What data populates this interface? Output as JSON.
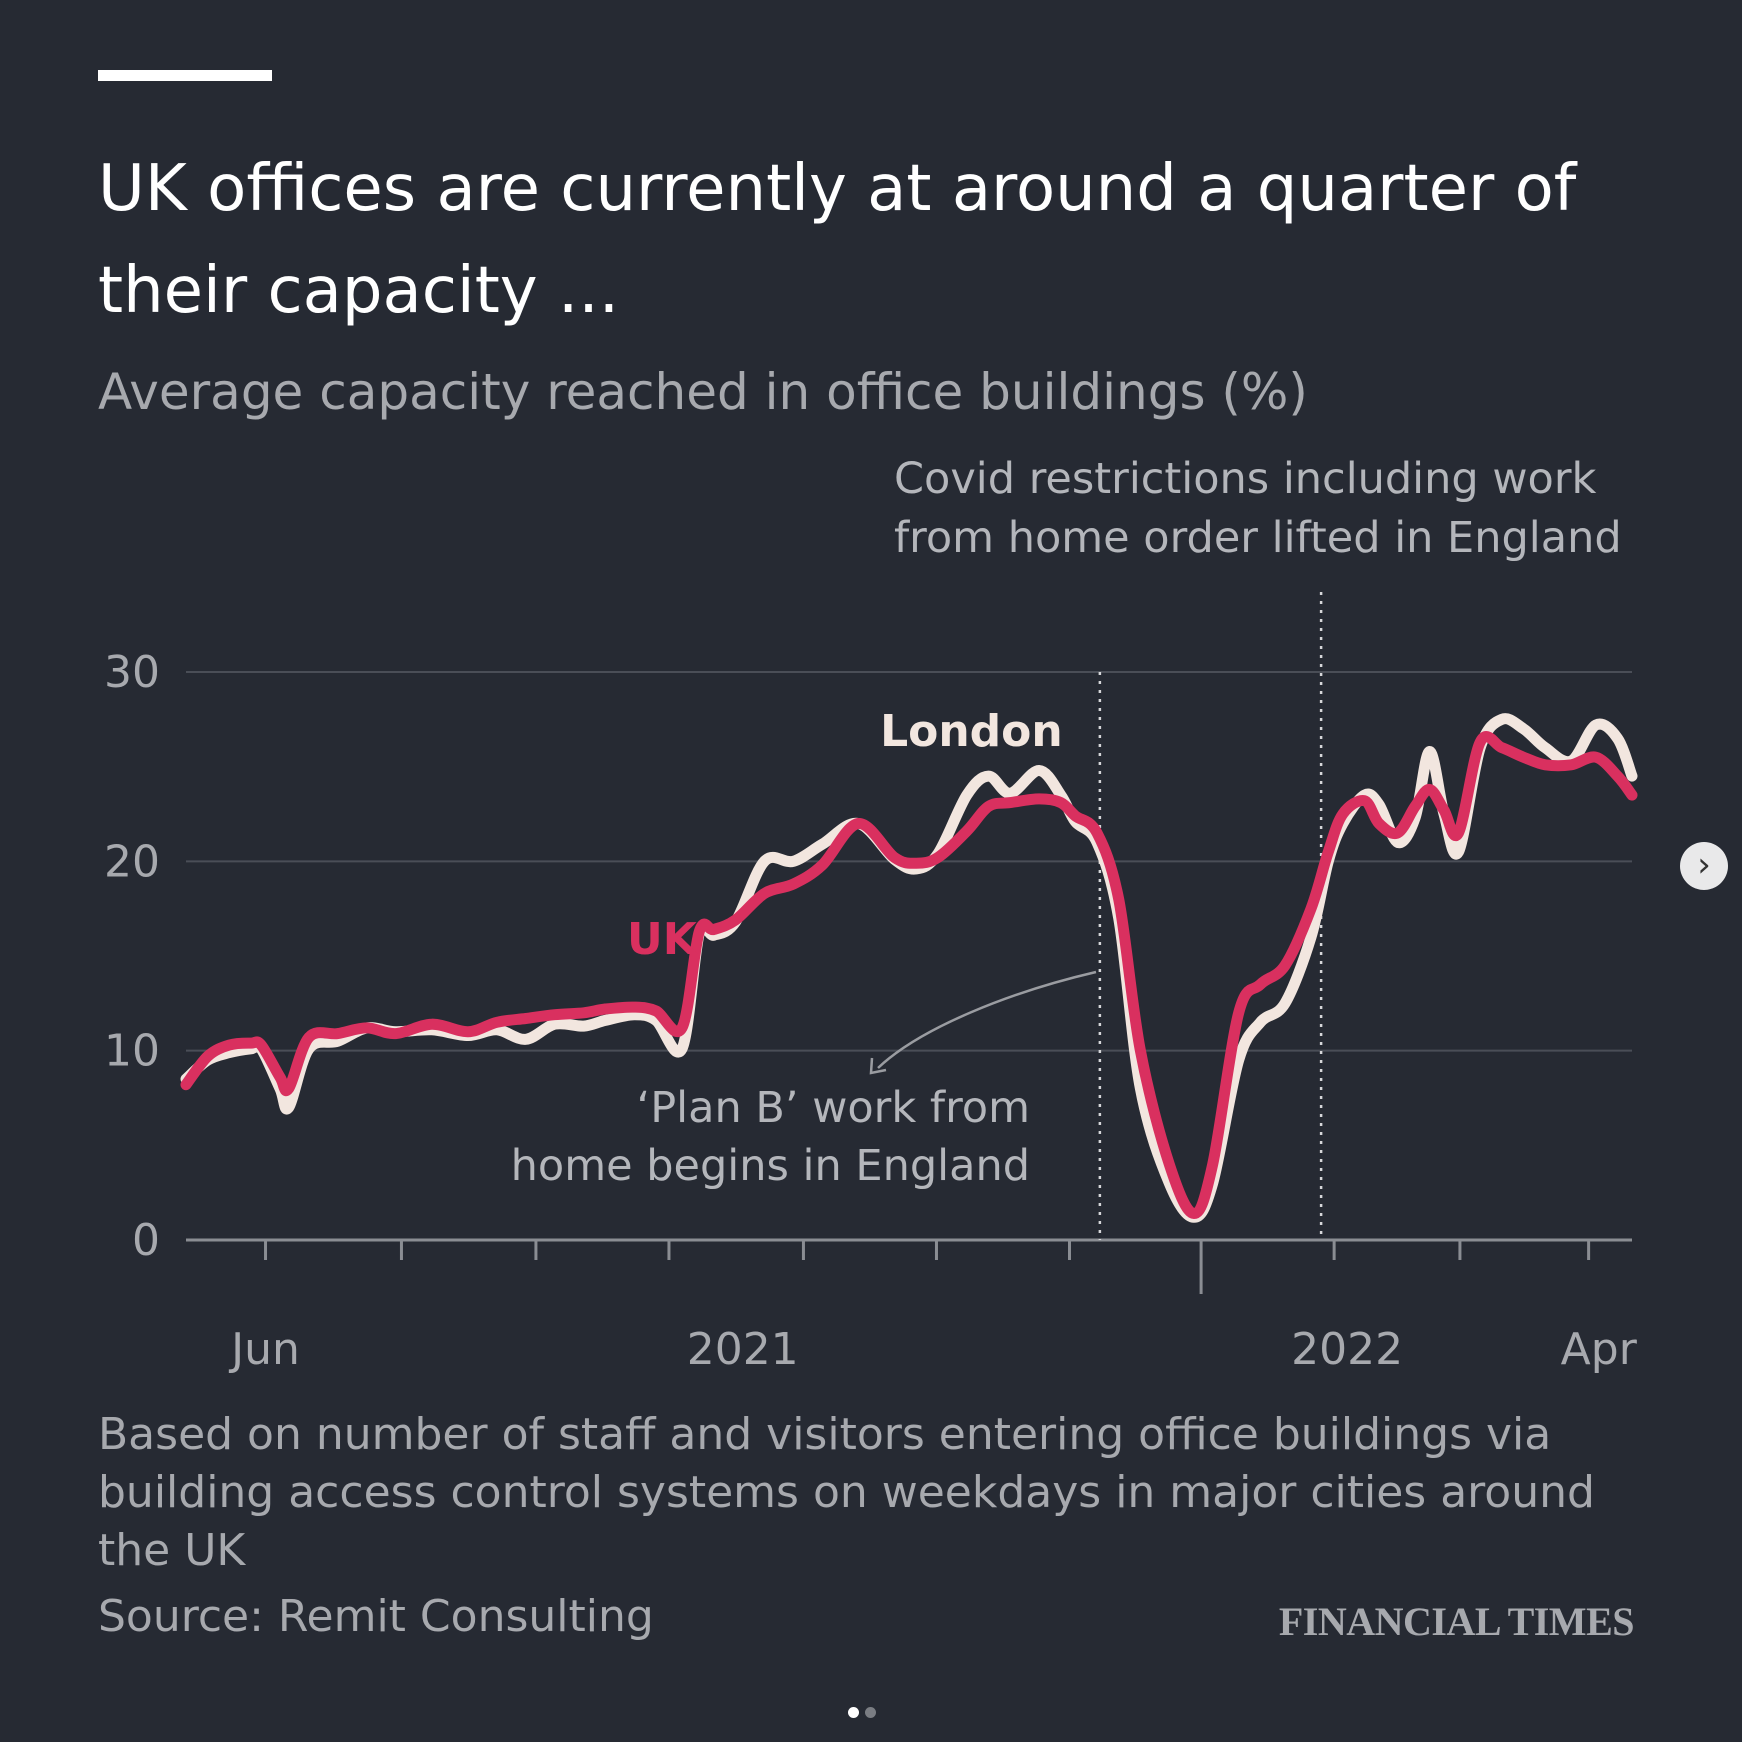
{
  "header": {
    "title": "UK offices are currently at around a quarter of their capacity ...",
    "subtitle": "Average capacity reached in office buildings (%)"
  },
  "annotations": {
    "covid_lifted_line1": "Covid restrictions including work",
    "covid_lifted_line2": "from home order lifted in England",
    "plan_b_line1": "‘Plan B’ work from",
    "plan_b_line2": "home begins in England"
  },
  "footer": {
    "note": "Based on number of staff and visitors entering office buildings via building access control systems on weekdays in major cities around the UK",
    "source": "Source: Remit Consulting",
    "brand": "FINANCIAL TIMES"
  },
  "colors": {
    "background": "#262a33",
    "uk": "#d9305f",
    "london": "#f2e6df",
    "grid": "#4a4e57"
  },
  "carousel": {
    "next_icon": "chevron-right-icon",
    "pages": 2,
    "current": 1
  },
  "chart_data": {
    "type": "line",
    "title": "UK offices are currently at around a quarter of their capacity ...",
    "ylabel": "Average capacity reached in office buildings (%)",
    "xlabel": "",
    "ylim": [
      0,
      30
    ],
    "xlim": [
      0,
      100
    ],
    "yticks": [
      0,
      10,
      20,
      30
    ],
    "xtick_labels": [
      {
        "x": 5.5,
        "label": "Jun"
      },
      {
        "x": 38.5,
        "label": "2021"
      },
      {
        "x": 80.3,
        "label": "2022"
      },
      {
        "x": 97.7,
        "label": "Apr"
      }
    ],
    "minor_ticks": [
      5.5,
      14.9,
      24.2,
      33.4,
      42.7,
      51.9,
      61.1,
      70.2,
      79.4,
      88.1,
      97.0
    ],
    "major_tick": 70.2,
    "grid": true,
    "events": [
      {
        "x": 63.2,
        "label": "‘Plan B’ work from home begins in England"
      },
      {
        "x": 78.5,
        "label": "Covid restrictions including work from home order lifted in England"
      }
    ],
    "series": [
      {
        "name": "London",
        "color": "#f2e6df",
        "points": [
          [
            0,
            8.5
          ],
          [
            1.5,
            9.5
          ],
          [
            3,
            9.9
          ],
          [
            4.5,
            10.1
          ],
          [
            5.2,
            10.1
          ],
          [
            6.5,
            8.0
          ],
          [
            7.1,
            7.0
          ],
          [
            8.5,
            10.1
          ],
          [
            10.5,
            10.5
          ],
          [
            12.5,
            11.2
          ],
          [
            14.5,
            11.0
          ],
          [
            17,
            11.1
          ],
          [
            19.5,
            10.8
          ],
          [
            21.5,
            11.1
          ],
          [
            23.5,
            10.6
          ],
          [
            25.5,
            11.4
          ],
          [
            27.5,
            11.3
          ],
          [
            29,
            11.6
          ],
          [
            31,
            11.9
          ],
          [
            32.5,
            11.6
          ],
          [
            34.3,
            10.1
          ],
          [
            35.5,
            16.2
          ],
          [
            36.5,
            16.1
          ],
          [
            38,
            16.8
          ],
          [
            40,
            20.0
          ],
          [
            42,
            20.0
          ],
          [
            44,
            20.9
          ],
          [
            46.5,
            22.0
          ],
          [
            49,
            20.1
          ],
          [
            50.5,
            19.6
          ],
          [
            52,
            20.4
          ],
          [
            54,
            23.5
          ],
          [
            55.5,
            24.5
          ],
          [
            57,
            23.6
          ],
          [
            59,
            24.8
          ],
          [
            60.5,
            23.5
          ],
          [
            61.5,
            22.1
          ],
          [
            63,
            21.0
          ],
          [
            64.5,
            17.0
          ],
          [
            66,
            8.0
          ],
          [
            68,
            3.0
          ],
          [
            69.7,
            1.2
          ],
          [
            71,
            3.0
          ],
          [
            72.8,
            9.5
          ],
          [
            74.3,
            11.5
          ],
          [
            76,
            12.5
          ],
          [
            77.8,
            16.0
          ],
          [
            79,
            20.0
          ],
          [
            80,
            22.0
          ],
          [
            81.5,
            23.5
          ],
          [
            82.5,
            23.0
          ],
          [
            83.8,
            21.0
          ],
          [
            85,
            22.3
          ],
          [
            86,
            25.8
          ],
          [
            87,
            22.5
          ],
          [
            88,
            20.5
          ],
          [
            89.5,
            26.0
          ],
          [
            91,
            27.5
          ],
          [
            92.5,
            27.0
          ],
          [
            94,
            26.0
          ],
          [
            95.8,
            25.3
          ],
          [
            97.5,
            27.2
          ],
          [
            99,
            26.5
          ],
          [
            100,
            24.5
          ]
        ]
      },
      {
        "name": "UK",
        "color": "#d9305f",
        "points": [
          [
            0,
            8.2
          ],
          [
            1.5,
            9.7
          ],
          [
            3,
            10.3
          ],
          [
            4.5,
            10.4
          ],
          [
            5.2,
            10.3
          ],
          [
            6.5,
            8.6
          ],
          [
            7.1,
            8.0
          ],
          [
            8.5,
            10.7
          ],
          [
            10.5,
            10.9
          ],
          [
            12.5,
            11.2
          ],
          [
            14.5,
            10.9
          ],
          [
            17,
            11.4
          ],
          [
            19.5,
            11.0
          ],
          [
            21.5,
            11.5
          ],
          [
            23.5,
            11.7
          ],
          [
            25.5,
            11.9
          ],
          [
            27.5,
            12.0
          ],
          [
            29,
            12.2
          ],
          [
            31,
            12.3
          ],
          [
            32.5,
            12.1
          ],
          [
            34.3,
            11.2
          ],
          [
            35.5,
            16.3
          ],
          [
            36.5,
            16.4
          ],
          [
            38,
            16.9
          ],
          [
            40,
            18.3
          ],
          [
            42,
            18.8
          ],
          [
            44,
            19.8
          ],
          [
            46.5,
            22.0
          ],
          [
            49,
            20.2
          ],
          [
            50.5,
            19.9
          ],
          [
            52,
            20.2
          ],
          [
            54,
            21.6
          ],
          [
            55.5,
            22.9
          ],
          [
            57,
            23.1
          ],
          [
            59,
            23.3
          ],
          [
            60.5,
            23.1
          ],
          [
            61.5,
            22.4
          ],
          [
            63,
            21.5
          ],
          [
            64.5,
            18.0
          ],
          [
            66,
            10.0
          ],
          [
            68,
            4.0
          ],
          [
            69.7,
            1.4
          ],
          [
            71,
            4.0
          ],
          [
            72.8,
            12.0
          ],
          [
            74.3,
            13.5
          ],
          [
            76,
            14.5
          ],
          [
            77.8,
            17.5
          ],
          [
            79,
            20.5
          ],
          [
            80,
            22.5
          ],
          [
            81.5,
            23.2
          ],
          [
            82.5,
            22.0
          ],
          [
            83.8,
            21.5
          ],
          [
            85,
            22.9
          ],
          [
            86,
            23.8
          ],
          [
            87,
            22.7
          ],
          [
            88,
            21.5
          ],
          [
            89.5,
            26.3
          ],
          [
            91,
            26.0
          ],
          [
            92.5,
            25.5
          ],
          [
            94,
            25.1
          ],
          [
            95.8,
            25.1
          ],
          [
            97.5,
            25.5
          ],
          [
            99,
            24.5
          ],
          [
            100,
            23.5
          ]
        ]
      }
    ],
    "series_labels": [
      {
        "name": "London",
        "x": 48,
        "y": 26.1
      },
      {
        "name": "UK",
        "x": 30.5,
        "y": 15.1
      }
    ]
  }
}
